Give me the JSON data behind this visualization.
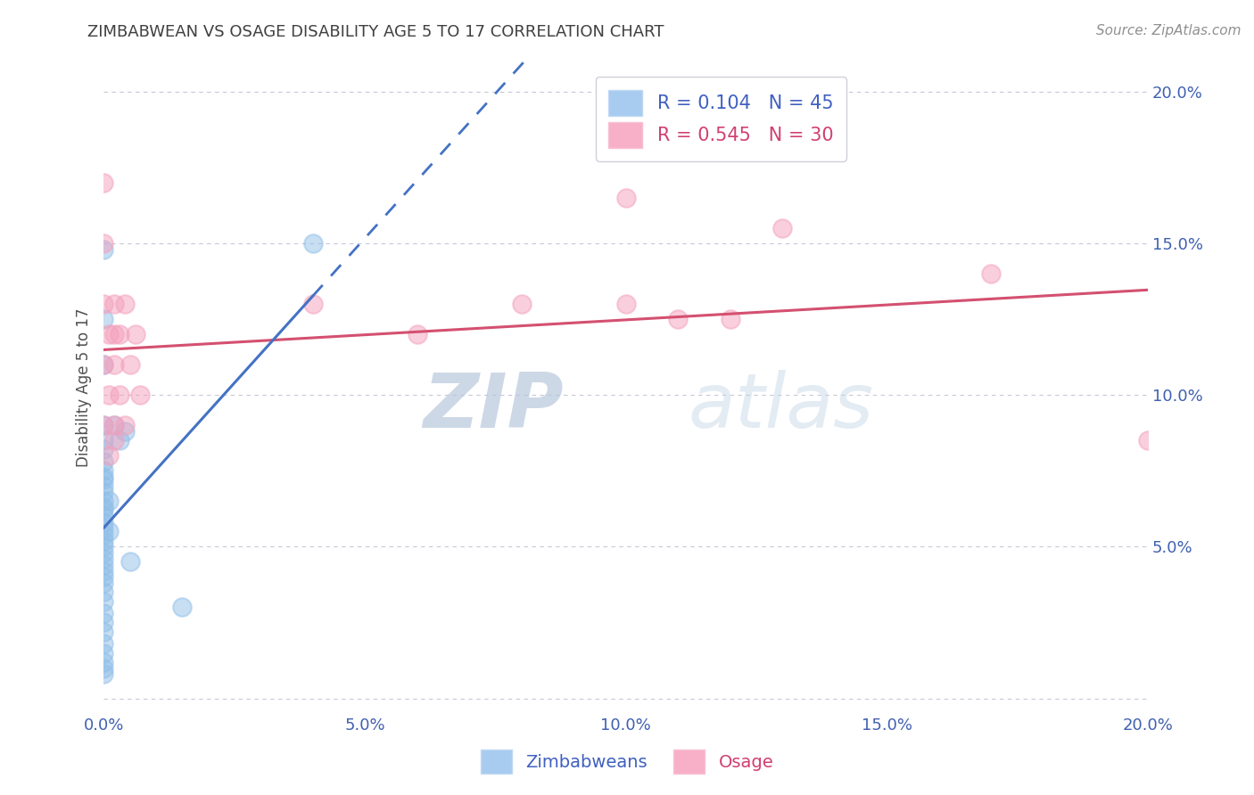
{
  "title": "ZIMBABWEAN VS OSAGE DISABILITY AGE 5 TO 17 CORRELATION CHART",
  "source": "Source: ZipAtlas.com",
  "ylabel": "Disability Age 5 to 17",
  "xlim": [
    0.0,
    0.2
  ],
  "ylim": [
    -0.005,
    0.21
  ],
  "xticks": [
    0.0,
    0.05,
    0.1,
    0.15,
    0.2
  ],
  "yticks": [
    0.0,
    0.05,
    0.1,
    0.15,
    0.2
  ],
  "xtick_labels": [
    "0.0%",
    "5.0%",
    "10.0%",
    "15.0%",
    "20.0%"
  ],
  "ytick_labels_right": [
    "",
    "5.0%",
    "10.0%",
    "15.0%",
    "20.0%"
  ],
  "zimbabwean_color": "#91bfe8",
  "osage_color": "#f4a0bc",
  "trend_zimbabwean_color": "#4472c4",
  "trend_osage_color": "#d45070",
  "background_color": "#ffffff",
  "grid_color": "#c8c8d8",
  "title_color": "#404040",
  "watermark_zip": "ZIP",
  "watermark_atlas": "atlas",
  "zimbabwean_scatter": [
    [
      0.0,
      0.148
    ],
    [
      0.0,
      0.125
    ],
    [
      0.0,
      0.11
    ],
    [
      0.0,
      0.09
    ],
    [
      0.0,
      0.085
    ],
    [
      0.0,
      0.082
    ],
    [
      0.0,
      0.078
    ],
    [
      0.0,
      0.075
    ],
    [
      0.0,
      0.073
    ],
    [
      0.0,
      0.072
    ],
    [
      0.0,
      0.07
    ],
    [
      0.0,
      0.068
    ],
    [
      0.0,
      0.065
    ],
    [
      0.0,
      0.063
    ],
    [
      0.0,
      0.062
    ],
    [
      0.0,
      0.06
    ],
    [
      0.0,
      0.058
    ],
    [
      0.0,
      0.056
    ],
    [
      0.0,
      0.054
    ],
    [
      0.0,
      0.052
    ],
    [
      0.0,
      0.05
    ],
    [
      0.0,
      0.048
    ],
    [
      0.0,
      0.046
    ],
    [
      0.0,
      0.044
    ],
    [
      0.0,
      0.042
    ],
    [
      0.0,
      0.04
    ],
    [
      0.0,
      0.038
    ],
    [
      0.0,
      0.035
    ],
    [
      0.0,
      0.032
    ],
    [
      0.0,
      0.028
    ],
    [
      0.0,
      0.025
    ],
    [
      0.0,
      0.022
    ],
    [
      0.0,
      0.018
    ],
    [
      0.0,
      0.015
    ],
    [
      0.0,
      0.012
    ],
    [
      0.0,
      0.01
    ],
    [
      0.0,
      0.008
    ],
    [
      0.001,
      0.065
    ],
    [
      0.001,
      0.055
    ],
    [
      0.002,
      0.09
    ],
    [
      0.003,
      0.085
    ],
    [
      0.004,
      0.088
    ],
    [
      0.04,
      0.15
    ],
    [
      0.005,
      0.045
    ],
    [
      0.015,
      0.03
    ]
  ],
  "osage_scatter": [
    [
      0.0,
      0.17
    ],
    [
      0.0,
      0.15
    ],
    [
      0.0,
      0.13
    ],
    [
      0.0,
      0.11
    ],
    [
      0.0,
      0.09
    ],
    [
      0.001,
      0.12
    ],
    [
      0.001,
      0.1
    ],
    [
      0.001,
      0.08
    ],
    [
      0.002,
      0.13
    ],
    [
      0.002,
      0.12
    ],
    [
      0.002,
      0.11
    ],
    [
      0.002,
      0.09
    ],
    [
      0.002,
      0.085
    ],
    [
      0.003,
      0.12
    ],
    [
      0.003,
      0.1
    ],
    [
      0.004,
      0.13
    ],
    [
      0.004,
      0.09
    ],
    [
      0.005,
      0.11
    ],
    [
      0.006,
      0.12
    ],
    [
      0.007,
      0.1
    ],
    [
      0.04,
      0.13
    ],
    [
      0.06,
      0.12
    ],
    [
      0.08,
      0.13
    ],
    [
      0.1,
      0.165
    ],
    [
      0.1,
      0.13
    ],
    [
      0.11,
      0.125
    ],
    [
      0.12,
      0.125
    ],
    [
      0.13,
      0.155
    ],
    [
      0.17,
      0.14
    ],
    [
      0.2,
      0.085
    ]
  ]
}
